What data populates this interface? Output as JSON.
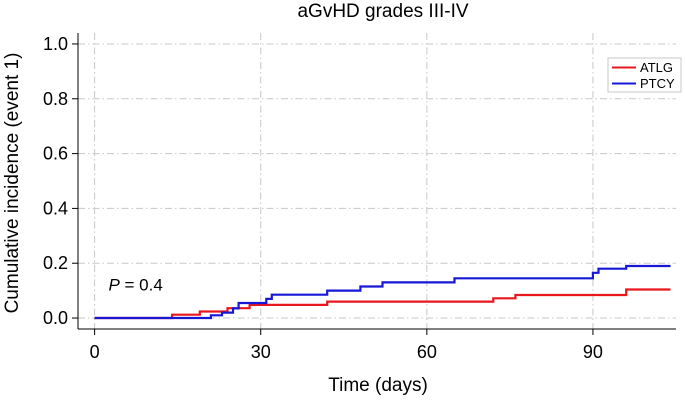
{
  "chart_data": {
    "type": "line",
    "title": "aGvHD grades III-IV",
    "xlabel": "Time (days)",
    "ylabel": "Cumulative incidence (event 1)",
    "xlim": [
      -3,
      105
    ],
    "ylim": [
      -0.04,
      1.04
    ],
    "xticks": [
      0,
      30,
      60,
      90
    ],
    "xtick_labels": [
      "0",
      "30",
      "60",
      "90"
    ],
    "yticks": [
      0.0,
      0.2,
      0.4,
      0.6,
      0.8,
      1.0
    ],
    "ytick_labels": [
      "0.0",
      "0.2",
      "0.4",
      "0.6",
      "0.8",
      "1.0"
    ],
    "grid": true,
    "legend": {
      "placement": "top-right"
    },
    "annotation": {
      "prefix": "P",
      "text": " = 0.4",
      "x": 2.5,
      "y": 0.1
    },
    "step": true,
    "series": [
      {
        "name": "ATLG",
        "color": "#e8171d",
        "x": [
          0,
          14,
          19,
          24,
          28,
          42,
          72,
          76,
          96,
          104
        ],
        "y": [
          0,
          0.012,
          0.024,
          0.036,
          0.048,
          0.06,
          0.072,
          0.084,
          0.104,
          0.104
        ]
      },
      {
        "name": "PTCY",
        "color": "#1717d6",
        "x": [
          0,
          21,
          23,
          25,
          26,
          31,
          32,
          42,
          48,
          52,
          65,
          90,
          91,
          96,
          104
        ],
        "y": [
          0,
          0.01,
          0.02,
          0.035,
          0.055,
          0.07,
          0.085,
          0.1,
          0.115,
          0.13,
          0.145,
          0.165,
          0.18,
          0.19,
          0.19
        ]
      }
    ]
  }
}
